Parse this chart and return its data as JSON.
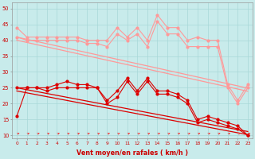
{
  "x": [
    0,
    1,
    2,
    3,
    4,
    5,
    6,
    7,
    8,
    9,
    10,
    11,
    12,
    13,
    14,
    15,
    16,
    17,
    18,
    19,
    20,
    21,
    22,
    23
  ],
  "line1_y": [
    44,
    41,
    41,
    41,
    41,
    41,
    41,
    40,
    40,
    40,
    44,
    41,
    44,
    40,
    48,
    44,
    44,
    40,
    41,
    40,
    40,
    26,
    21,
    26
  ],
  "line2_y": [
    41,
    40,
    40,
    40,
    40,
    40,
    40,
    39,
    39,
    38,
    42,
    40,
    42,
    38,
    46,
    42,
    42,
    38,
    38,
    38,
    38,
    25,
    20,
    25
  ],
  "line3_trend1": [
    41,
    40.3,
    39.6,
    38.9,
    38.2,
    37.5,
    36.8,
    36.1,
    35.4,
    34.7,
    34.0,
    33.3,
    32.6,
    31.9,
    31.2,
    30.5,
    29.8,
    29.1,
    28.4,
    27.7,
    27.0,
    26.3,
    25.6,
    24.9
  ],
  "line4_trend2": [
    40,
    39.3,
    38.6,
    37.9,
    37.2,
    36.5,
    35.8,
    35.1,
    34.4,
    33.7,
    33.0,
    32.3,
    31.6,
    30.9,
    30.2,
    29.5,
    28.8,
    28.1,
    27.4,
    26.7,
    26.0,
    25.3,
    24.6,
    23.9
  ],
  "line5_y": [
    16,
    25,
    25,
    25,
    26,
    27,
    26,
    26,
    25,
    21,
    24,
    28,
    24,
    28,
    24,
    24,
    23,
    21,
    15,
    16,
    15,
    14,
    13,
    10
  ],
  "line6_y": [
    25,
    25,
    25,
    24,
    25,
    25,
    25,
    25,
    25,
    20,
    22,
    27,
    23,
    27,
    23,
    23,
    22,
    20,
    14,
    15,
    14,
    13,
    12,
    10
  ],
  "line7_trend3": [
    25,
    24.4,
    23.8,
    23.2,
    22.6,
    22.0,
    21.4,
    20.8,
    20.2,
    19.6,
    19.0,
    18.4,
    17.8,
    17.2,
    16.6,
    16.0,
    15.4,
    14.8,
    14.2,
    13.6,
    13.0,
    12.4,
    11.8,
    11.2
  ],
  "line8_trend4": [
    24,
    23.4,
    22.8,
    22.2,
    21.6,
    21.0,
    20.4,
    19.8,
    19.2,
    18.6,
    18.0,
    17.4,
    16.8,
    16.2,
    15.6,
    15.0,
    14.4,
    13.8,
    13.2,
    12.6,
    12.0,
    11.4,
    10.8,
    10.2
  ],
  "color_light": "#FF9999",
  "color_dark": "#DD0000",
  "bg_color": "#C8EBEB",
  "grid_color": "#A8D8D8",
  "xlabel": "Vent moyen/en rafales ( km/h )",
  "ylim": [
    9,
    52
  ],
  "xlim_min": -0.5,
  "xlim_max": 23.5,
  "yticks": [
    10,
    15,
    20,
    25,
    30,
    35,
    40,
    45,
    50
  ],
  "xticks": [
    0,
    1,
    2,
    3,
    4,
    5,
    6,
    7,
    8,
    9,
    10,
    11,
    12,
    13,
    14,
    15,
    16,
    17,
    18,
    19,
    20,
    21,
    22,
    23
  ]
}
